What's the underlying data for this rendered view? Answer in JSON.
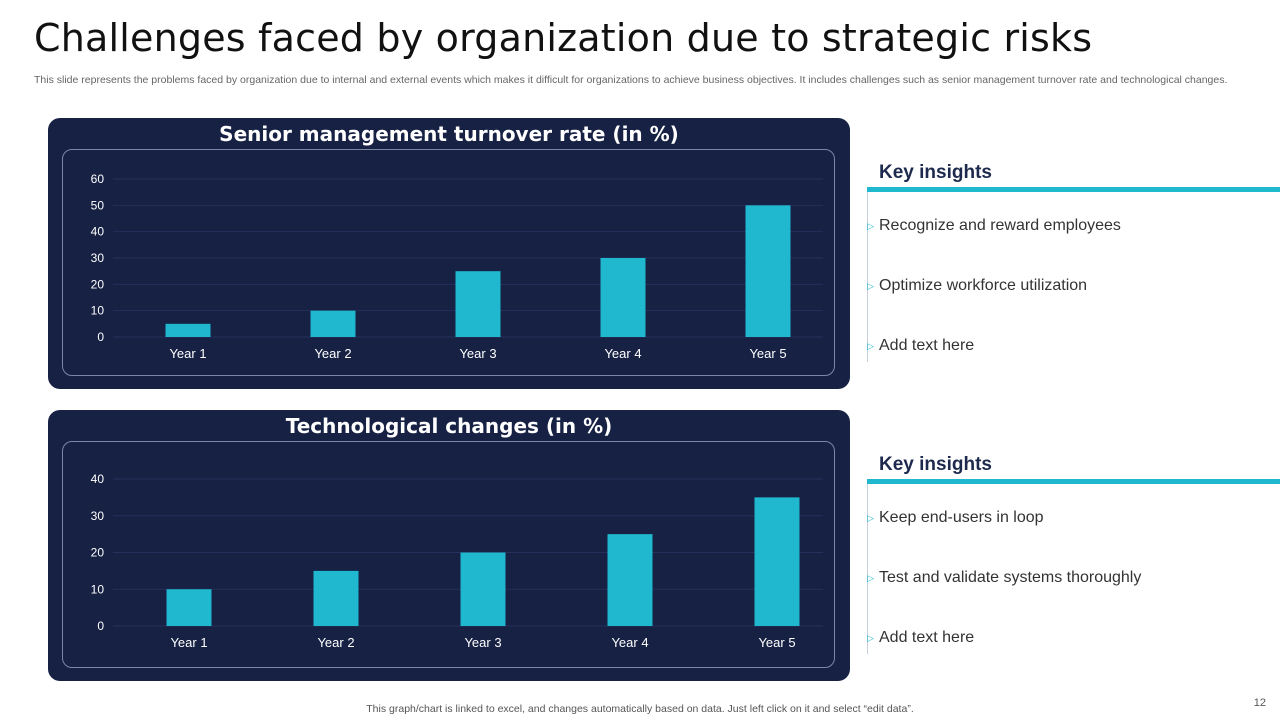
{
  "slide": {
    "title": "Challenges faced by organization due to strategic risks",
    "subtitle": "This slide represents the problems faced by organization due to internal and external events which makes it difficult for organizations to achieve business objectives. It includes challenges such as senior management turnover rate and technological changes.",
    "footer": "This graph/chart is linked to excel, and changes automatically based on data. Just left click on it and select “edit data”.",
    "page_number": "12"
  },
  "colors": {
    "panel_bg": "#162144",
    "bar": "#1fb8cf",
    "accent": "#1fb8cf"
  },
  "chart_data": [
    {
      "type": "bar",
      "title": "Senior management turnover rate (in %)",
      "categories": [
        "Year 1",
        "Year 2",
        "Year 3",
        "Year 4",
        "Year 5"
      ],
      "values": [
        5,
        10,
        25,
        30,
        50
      ],
      "yticks": [
        0,
        10,
        20,
        30,
        40,
        50,
        60
      ],
      "ylim": [
        0,
        60
      ],
      "grid": true
    },
    {
      "type": "bar",
      "title": "Technological changes (in %)",
      "categories": [
        "Year 1",
        "Year 2",
        "Year 3",
        "Year 4",
        "Year 5"
      ],
      "values": [
        10,
        15,
        20,
        25,
        35
      ],
      "yticks": [
        0,
        10,
        20,
        30,
        40
      ],
      "ylim": [
        0,
        40
      ],
      "grid": true
    }
  ],
  "insights": [
    {
      "heading": "Key insights",
      "items": [
        "Recognize and reward employees",
        "Optimize workforce utilization",
        "Add text here"
      ]
    },
    {
      "heading": "Key insights",
      "items": [
        "Keep end-users in loop",
        "Test and validate systems thoroughly",
        "Add text here"
      ]
    }
  ]
}
